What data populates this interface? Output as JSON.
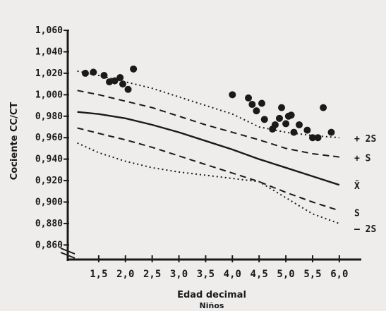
{
  "chart_data": {
    "type": "scatter",
    "title": "",
    "xlabel": "Edad decimal",
    "xsublabel": "Niños",
    "ylabel": "Cociente CC/CT",
    "xlim": [
      1.0,
      6.2
    ],
    "ylim": [
      0.855,
      1.062
    ],
    "x_ticks": [
      1.5,
      2.0,
      2.5,
      3.0,
      3.5,
      4.0,
      4.5,
      5.0,
      5.5,
      6.0
    ],
    "x_tick_labels": [
      "1,5",
      "2,0",
      "2,5",
      "3,0",
      "3,5",
      "4,0",
      "4,5",
      "5,0",
      "5,5",
      "6,0"
    ],
    "y_ticks": [
      0.86,
      0.88,
      0.9,
      0.92,
      0.94,
      0.96,
      0.98,
      1.0,
      1.02,
      1.04,
      1.06
    ],
    "y_tick_labels": [
      "0,860",
      "0,880",
      "0,900",
      "0,920",
      "0,940",
      "0,960",
      "0,980",
      "1,000",
      "1,020",
      "1,040",
      "1,060"
    ],
    "series": [
      {
        "name": "",
        "kind": "points",
        "points": [
          [
            1.25,
            1.02
          ],
          [
            1.4,
            1.021
          ],
          [
            1.6,
            1.018
          ],
          [
            1.7,
            1.012
          ],
          [
            1.8,
            1.013
          ],
          [
            1.9,
            1.016
          ],
          [
            1.95,
            1.01
          ],
          [
            2.05,
            1.005
          ],
          [
            2.15,
            1.024
          ],
          [
            4.0,
            1.0
          ],
          [
            4.3,
            0.997
          ],
          [
            4.37,
            0.991
          ],
          [
            4.45,
            0.985
          ],
          [
            4.55,
            0.992
          ],
          [
            4.6,
            0.977
          ],
          [
            4.75,
            0.968
          ],
          [
            4.8,
            0.972
          ],
          [
            4.88,
            0.978
          ],
          [
            4.92,
            0.988
          ],
          [
            5.0,
            0.973
          ],
          [
            5.05,
            0.98
          ],
          [
            5.1,
            0.981
          ],
          [
            5.15,
            0.965
          ],
          [
            5.25,
            0.972
          ],
          [
            5.4,
            0.967
          ],
          [
            5.5,
            0.96
          ],
          [
            5.6,
            0.96
          ],
          [
            5.7,
            0.988
          ],
          [
            5.85,
            0.965
          ]
        ]
      },
      {
        "name": "2S",
        "kind": "curve",
        "dash": "dotted",
        "x": [
          1.1,
          1.5,
          2.0,
          2.5,
          3.0,
          3.5,
          4.0,
          4.5,
          5.0,
          5.5,
          6.0
        ],
        "y": [
          1.022,
          1.018,
          1.012,
          1.006,
          0.998,
          0.99,
          0.982,
          0.97,
          0.965,
          0.962,
          0.96
        ]
      },
      {
        "name": "S",
        "kind": "curve",
        "dash": "dashed",
        "x": [
          1.1,
          1.5,
          2.0,
          2.5,
          3.0,
          3.5,
          4.0,
          4.5,
          5.0,
          5.5,
          6.0
        ],
        "y": [
          1.004,
          1.0,
          0.994,
          0.988,
          0.98,
          0.972,
          0.965,
          0.958,
          0.95,
          0.945,
          0.942
        ]
      },
      {
        "name": "X̄",
        "kind": "curve",
        "dash": "solid",
        "x": [
          1.1,
          1.5,
          2.0,
          2.5,
          3.0,
          3.5,
          4.0,
          4.5,
          5.0,
          5.5,
          6.0
        ],
        "y": [
          0.984,
          0.982,
          0.978,
          0.972,
          0.965,
          0.957,
          0.949,
          0.94,
          0.932,
          0.924,
          0.916
        ]
      },
      {
        "name": "S",
        "kind": "curve",
        "dash": "dashed",
        "x": [
          1.1,
          1.5,
          2.0,
          2.5,
          3.0,
          3.5,
          4.0,
          4.5,
          5.0,
          5.5,
          6.0
        ],
        "y": [
          0.969,
          0.964,
          0.958,
          0.951,
          0.943,
          0.935,
          0.927,
          0.919,
          0.909,
          0.9,
          0.892
        ]
      },
      {
        "name": "2S",
        "kind": "curve",
        "dash": "dotted",
        "x": [
          1.1,
          1.5,
          2.0,
          2.5,
          3.0,
          3.5,
          4.0,
          4.5,
          5.0,
          5.5,
          6.0
        ],
        "y": [
          0.955,
          0.946,
          0.938,
          0.932,
          0.928,
          0.925,
          0.922,
          0.919,
          0.904,
          0.889,
          0.88
        ]
      }
    ],
    "curve_labels": [
      "+ 2S",
      "+ S",
      "X̄",
      "S",
      "— 2S"
    ],
    "grid": false,
    "legend": "none"
  },
  "colors": {
    "background": "#eeedeb",
    "ink": "#1a1a1a"
  }
}
